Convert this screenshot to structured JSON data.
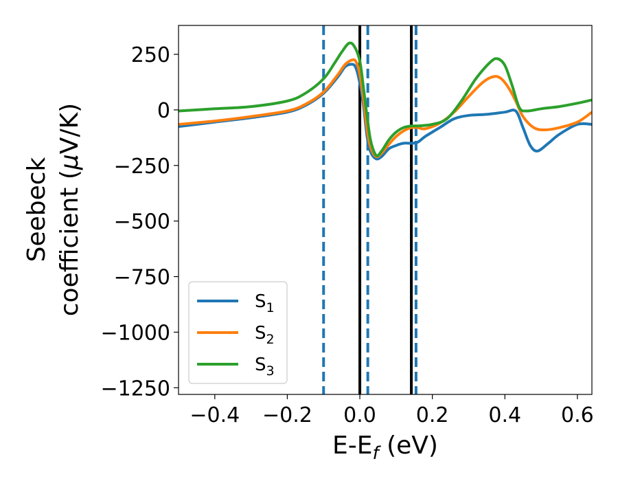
{
  "chart_data": {
    "type": "line",
    "title": "",
    "xlabel": "E-E",
    "xlabel_sub": "f",
    "xlabel_unit": " (eV)",
    "ylabel_line1": "Seebeck",
    "ylabel_line2_pre": "coefficient  (",
    "ylabel_mu": "μ",
    "ylabel_line2_post": "V/K)",
    "xlim": [
      -0.5,
      0.64
    ],
    "ylim": [
      -1280,
      380
    ],
    "xticks": [
      -0.4,
      -0.2,
      0.0,
      0.2,
      0.4,
      0.6
    ],
    "xtick_labels": [
      "−0.4",
      "−0.2",
      "0.0",
      "0.2",
      "0.4",
      "0.6"
    ],
    "yticks": [
      250,
      0,
      -250,
      -500,
      -750,
      -1000,
      -1250
    ],
    "ytick_labels": [
      "250",
      "0",
      "−250",
      "−500",
      "−750",
      "−1000",
      "−1250"
    ],
    "vlines_solid": [
      0.0,
      0.142
    ],
    "vlines_dashed": [
      -0.1,
      0.022,
      0.155
    ],
    "legend_position": "lower-left",
    "series": [
      {
        "name": "S",
        "sub": "1",
        "color": "#1f77b4",
        "x": [
          -0.5,
          -0.4,
          -0.3,
          -0.2,
          -0.15,
          -0.1,
          -0.06,
          -0.04,
          -0.02,
          -0.01,
          0.0,
          0.01,
          0.02,
          0.03,
          0.045,
          0.06,
          0.08,
          0.1,
          0.12,
          0.142,
          0.16,
          0.18,
          0.22,
          0.26,
          0.3,
          0.35,
          0.4,
          0.43,
          0.45,
          0.47,
          0.49,
          0.52,
          0.55,
          0.6,
          0.64
        ],
        "values": [
          -75,
          -55,
          -35,
          -10,
          20,
          75,
          150,
          195,
          205,
          185,
          120,
          20,
          -120,
          -190,
          -220,
          -210,
          -175,
          -160,
          -150,
          -150,
          -145,
          -120,
          -80,
          -40,
          -25,
          -20,
          -10,
          -5,
          -80,
          -160,
          -185,
          -150,
          -110,
          -65,
          -65
        ]
      },
      {
        "name": "S",
        "sub": "2",
        "color": "#ff7f0e",
        "x": [
          -0.5,
          -0.4,
          -0.3,
          -0.2,
          -0.15,
          -0.1,
          -0.06,
          -0.04,
          -0.02,
          -0.01,
          0.0,
          0.01,
          0.02,
          0.03,
          0.045,
          0.06,
          0.08,
          0.1,
          0.12,
          0.142,
          0.16,
          0.18,
          0.22,
          0.26,
          0.3,
          0.34,
          0.37,
          0.39,
          0.41,
          0.43,
          0.45,
          0.48,
          0.51,
          0.55,
          0.6,
          0.64
        ],
        "values": [
          -65,
          -50,
          -30,
          -5,
          25,
          80,
          160,
          205,
          225,
          215,
          160,
          50,
          -90,
          -170,
          -210,
          -195,
          -155,
          -120,
          -95,
          -80,
          -80,
          -85,
          -60,
          -10,
          60,
          125,
          150,
          140,
          100,
          40,
          -30,
          -80,
          -90,
          -80,
          -55,
          -10
        ]
      },
      {
        "name": "S",
        "sub": "3",
        "color": "#2ca02c",
        "x": [
          -0.5,
          -0.4,
          -0.3,
          -0.2,
          -0.15,
          -0.1,
          -0.07,
          -0.05,
          -0.03,
          -0.015,
          0.0,
          0.01,
          0.02,
          0.03,
          0.045,
          0.06,
          0.08,
          0.1,
          0.12,
          0.142,
          0.16,
          0.2,
          0.24,
          0.28,
          0.32,
          0.36,
          0.38,
          0.4,
          0.42,
          0.44,
          0.46,
          0.5,
          0.55,
          0.6,
          0.64
        ],
        "values": [
          -5,
          5,
          15,
          40,
          75,
          140,
          210,
          260,
          300,
          285,
          220,
          100,
          -30,
          -140,
          -205,
          -185,
          -135,
          -100,
          -80,
          -72,
          -72,
          -65,
          -40,
          40,
          140,
          215,
          230,
          200,
          110,
          10,
          -5,
          5,
          15,
          30,
          45
        ]
      }
    ]
  }
}
